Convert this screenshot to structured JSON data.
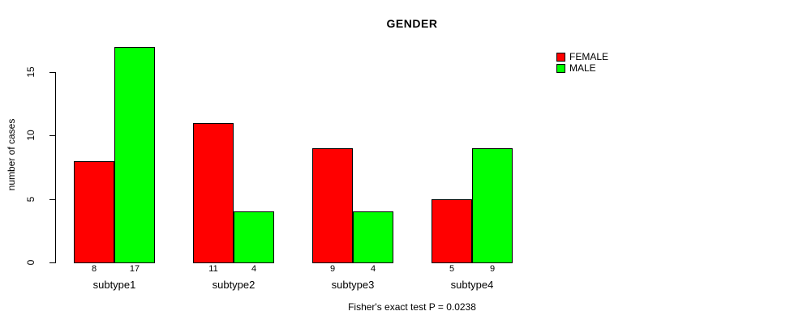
{
  "chart_data": {
    "type": "bar",
    "title": "GENDER",
    "xlabel": "",
    "ylabel": "number of cases",
    "categories": [
      "subtype1",
      "subtype2",
      "subtype3",
      "subtype4"
    ],
    "series": [
      {
        "name": "FEMALE",
        "color": "#FF0000",
        "values": [
          8,
          11,
          9,
          5
        ]
      },
      {
        "name": "MALE",
        "color": "#00FF00",
        "values": [
          17,
          4,
          4,
          9
        ]
      }
    ],
    "bar_value_labels": [
      [
        8,
        17
      ],
      [
        11,
        4
      ],
      [
        9,
        4
      ],
      [
        5,
        9
      ]
    ],
    "yticks": [
      0,
      5,
      10,
      15
    ],
    "ylim": [
      0,
      17
    ],
    "grid": false,
    "legend_position": "top-right",
    "note": "Fisher's exact test P = 0.0238"
  }
}
